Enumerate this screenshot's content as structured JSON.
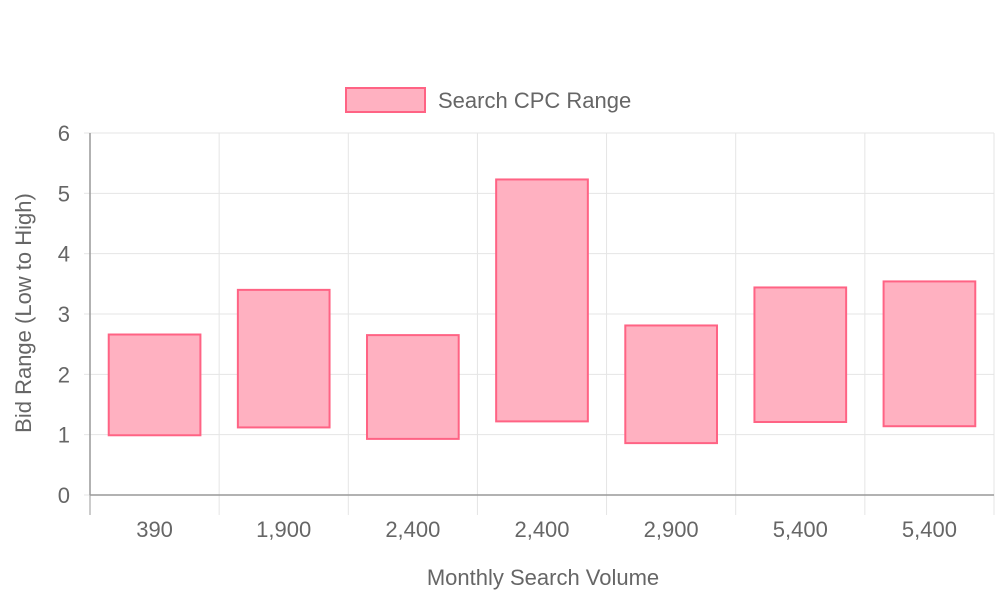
{
  "chart_data": {
    "type": "bar",
    "subtype": "floating-range",
    "legend": {
      "label": "Search CPC Range",
      "placement": "top-center"
    },
    "xlabel": "Monthly Search Volume",
    "ylabel": "Bid Range (Low to High)",
    "ylim": [
      0,
      6
    ],
    "yticks": [
      "0",
      "1",
      "2",
      "3",
      "4",
      "5",
      "6"
    ],
    "grid": true,
    "categories": [
      "390",
      "1,900",
      "2,400",
      "2,400",
      "2,900",
      "5,400",
      "5,400"
    ],
    "series": [
      {
        "name": "Search CPC Range",
        "ranges": [
          [
            0.99,
            2.66
          ],
          [
            1.12,
            3.4
          ],
          [
            0.93,
            2.65
          ],
          [
            1.22,
            5.23
          ],
          [
            0.86,
            2.81
          ],
          [
            1.21,
            3.44
          ],
          [
            1.14,
            3.54
          ]
        ]
      }
    ],
    "colors": {
      "fill": "#FFB1C1",
      "stroke": "#FF6384",
      "grid": "#e5e5e5",
      "axis": "#999999",
      "text": "#666666"
    }
  }
}
